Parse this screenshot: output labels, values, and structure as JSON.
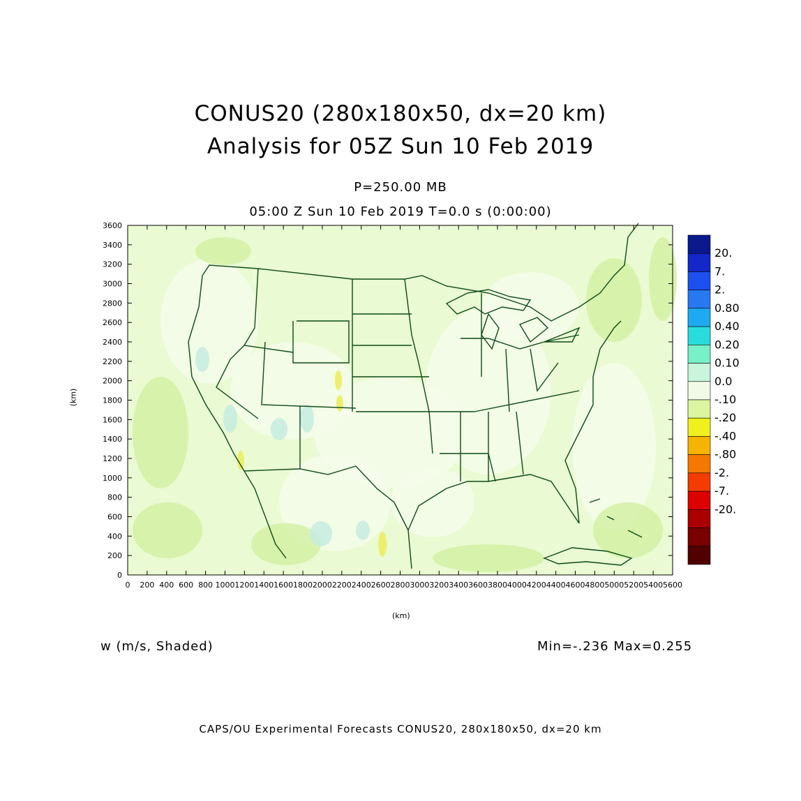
{
  "title_line1": "CONUS20 (280x180x50, dx=20 km)",
  "title_line2": "Analysis for 05Z Sun 10 Feb 2019",
  "level": "P=250.00 MB",
  "time_line": "05:00 Z Sun 10 Feb 2019    T=0.0 s (0:00:00)",
  "variable": "w (m/s, Shaded)",
  "minmax": "Min=-.236  Max=0.255",
  "footer": "CAPS/OU Experimental Forecasts  CONUS20, 280x180x50, dx=20 km",
  "axes": {
    "xlabel": "(km)",
    "ylabel": "(km)",
    "xlim": [
      0,
      5600
    ],
    "ylim": [
      0,
      3600
    ],
    "xticks": [
      "0",
      "200",
      "400",
      "600",
      "800",
      "1000",
      "1200",
      "1400",
      "1600",
      "1800",
      "2000",
      "2200",
      "2400",
      "2600",
      "2800",
      "3000",
      "3200",
      "3400",
      "3600",
      "3800",
      "4000",
      "4200",
      "4400",
      "4600",
      "4800",
      "5000",
      "5200",
      "5400",
      "5600"
    ],
    "yticks": [
      "0",
      "200",
      "400",
      "600",
      "800",
      "1000",
      "1200",
      "1400",
      "1600",
      "1800",
      "2000",
      "2200",
      "2400",
      "2600",
      "2800",
      "3000",
      "3200",
      "3400",
      "3600"
    ]
  },
  "colorbar": {
    "labels": [
      "20.",
      "7.",
      "2.",
      "0.80",
      "0.40",
      "0.20",
      "0.10",
      "0.0",
      "-.10",
      "-.20",
      "-.40",
      "-.80",
      "-2.",
      "-7.",
      "-20."
    ],
    "colors": [
      "#0a1a8c",
      "#1428c8",
      "#1e50f0",
      "#2878f0",
      "#1eaaf0",
      "#28dcdc",
      "#78f0c8",
      "#c8f5dc",
      "#f0fae6",
      "#dcf5a0",
      "#f0f01e",
      "#f5b400",
      "#f57800",
      "#f53c00",
      "#dc0000",
      "#aa0000",
      "#780000",
      "#500000"
    ]
  },
  "map_colors": {
    "background": "#eafad2",
    "light": "#f4fcea",
    "green": "#d4f0a4",
    "cyan": "#c4ece0",
    "yellow": "#ecec5a",
    "coast": "#0b4a16"
  }
}
